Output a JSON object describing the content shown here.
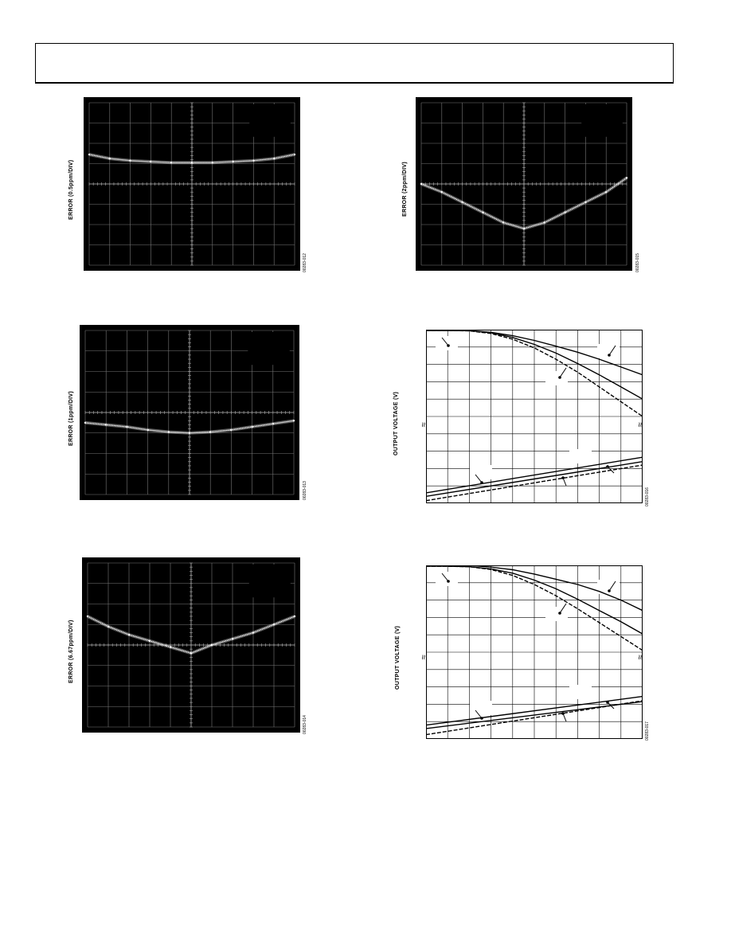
{
  "header": {},
  "chart_data": [
    {
      "type": "scatter",
      "ylabel": "ERROR (0.5ppm/DIV)",
      "figure_id": "00283-012",
      "grid": "10x8",
      "x": [
        0,
        1,
        2,
        3,
        4,
        5,
        6,
        7,
        8,
        9,
        10
      ],
      "y": [
        2.55,
        2.75,
        2.85,
        2.9,
        2.95,
        2.95,
        2.95,
        2.9,
        2.85,
        2.75,
        2.55
      ]
    },
    {
      "type": "scatter",
      "ylabel": "ERROR (2ppm/DIV)",
      "figure_id": "00283-015",
      "grid": "10x8",
      "x": [
        0,
        1,
        2,
        3,
        4,
        5,
        6,
        7,
        8,
        9,
        10
      ],
      "y": [
        4.0,
        4.4,
        4.9,
        5.4,
        5.9,
        6.2,
        5.9,
        5.4,
        4.9,
        4.4,
        3.7
      ]
    },
    {
      "type": "scatter",
      "ylabel": "ERROR (1ppm/DIV)",
      "figure_id": "00283-013",
      "grid": "10x8",
      "x": [
        0,
        1,
        2,
        3,
        4,
        5,
        6,
        7,
        8,
        9,
        10
      ],
      "y": [
        4.5,
        4.6,
        4.7,
        4.85,
        4.95,
        5.0,
        4.95,
        4.85,
        4.7,
        4.55,
        4.4
      ]
    },
    {
      "type": "line",
      "ylabel": "OUTPUT VOLTAGE (V)",
      "figure_id": "00283-016",
      "grid": "10x10",
      "series": [
        {
          "x": [
            0,
            1,
            2,
            3,
            4,
            5,
            6,
            7,
            8,
            9,
            10
          ],
          "y": [
            0.05,
            0.05,
            0.06,
            0.15,
            0.35,
            0.62,
            0.95,
            1.3,
            1.7,
            2.15,
            2.6
          ]
        },
        {
          "x": [
            0,
            1,
            2,
            3,
            4,
            5,
            6,
            7,
            8,
            9,
            10
          ],
          "y": [
            0.05,
            0.05,
            0.06,
            0.18,
            0.45,
            0.85,
            1.35,
            1.95,
            2.6,
            3.3,
            4.0
          ]
        },
        {
          "x": [
            0,
            1,
            2,
            3,
            4,
            5,
            6,
            7,
            8,
            9,
            10
          ],
          "y": [
            0.05,
            0.05,
            0.07,
            0.22,
            0.55,
            1.05,
            1.7,
            2.45,
            3.3,
            4.15,
            5.0
          ]
        },
        {
          "x": [
            0,
            10
          ],
          "y": [
            9.6,
            7.6
          ]
        },
        {
          "x": [
            0,
            10
          ],
          "y": [
            9.85,
            7.8
          ]
        },
        {
          "x": [
            0,
            10
          ],
          "y": [
            9.4,
            7.35
          ]
        }
      ]
    },
    {
      "type": "line",
      "ylabel": "OUTPUT VOLTAGE (V)",
      "figure_id": "00283-017",
      "grid": "10x10",
      "series": [
        {
          "x": [
            0,
            1,
            2,
            3,
            4,
            5,
            6,
            7,
            8,
            9,
            10
          ],
          "y": [
            0.0,
            -0.05,
            0.0,
            0.1,
            0.25,
            0.5,
            0.8,
            1.1,
            1.5,
            2.0,
            2.6
          ]
        },
        {
          "x": [
            0,
            1,
            2,
            3,
            4,
            5,
            6,
            7,
            8,
            9,
            10
          ],
          "y": [
            0.05,
            0.05,
            0.08,
            0.2,
            0.45,
            0.85,
            1.35,
            1.95,
            2.6,
            3.25,
            3.95
          ]
        },
        {
          "x": [
            0,
            1,
            2,
            3,
            4,
            5,
            6,
            7,
            8,
            9,
            10
          ],
          "y": [
            0.05,
            0.05,
            0.08,
            0.24,
            0.58,
            1.1,
            1.75,
            2.5,
            3.3,
            4.1,
            4.9
          ]
        },
        {
          "x": [
            0,
            10
          ],
          "y": [
            9.4,
            7.85
          ]
        },
        {
          "x": [
            0,
            10
          ],
          "y": [
            9.75,
            7.8
          ]
        },
        {
          "x": [
            0,
            10
          ],
          "y": [
            9.2,
            7.55
          ]
        }
      ]
    },
    {
      "type": "scatter",
      "ylabel": "ERROR (6.67ppm/DIV)",
      "figure_id": "00283-014",
      "grid": "10x8",
      "x": [
        0,
        1,
        2,
        3,
        4,
        5,
        6,
        7,
        8,
        9,
        10
      ],
      "y": [
        2.6,
        3.1,
        3.5,
        3.8,
        4.1,
        4.4,
        4.0,
        3.7,
        3.4,
        3.0,
        2.6
      ]
    }
  ]
}
